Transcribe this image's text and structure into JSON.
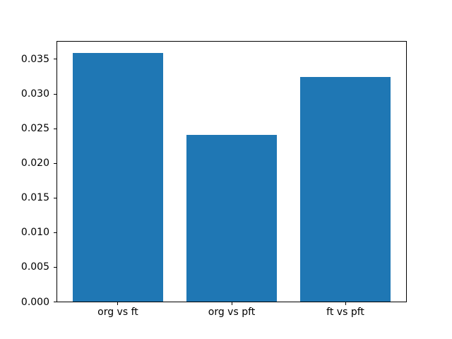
{
  "chart_data": {
    "type": "bar",
    "categories": [
      "org vs ft",
      "org vs pft",
      "ft vs pft"
    ],
    "values": [
      0.0359,
      0.0241,
      0.0325
    ],
    "title": "",
    "xlabel": "",
    "ylabel": "",
    "ylim": [
      0,
      0.0377
    ],
    "yticks": [
      0,
      0.005,
      0.01,
      0.015,
      0.02,
      0.025,
      0.03,
      0.035
    ],
    "ytick_labels": [
      "0.000",
      "0.005",
      "0.010",
      "0.015",
      "0.020",
      "0.025",
      "0.030",
      "0.035"
    ],
    "bar_color": "#1f77b4",
    "spine_color": "#000000",
    "background_color": "#ffffff",
    "grid": false,
    "legend": null
  }
}
